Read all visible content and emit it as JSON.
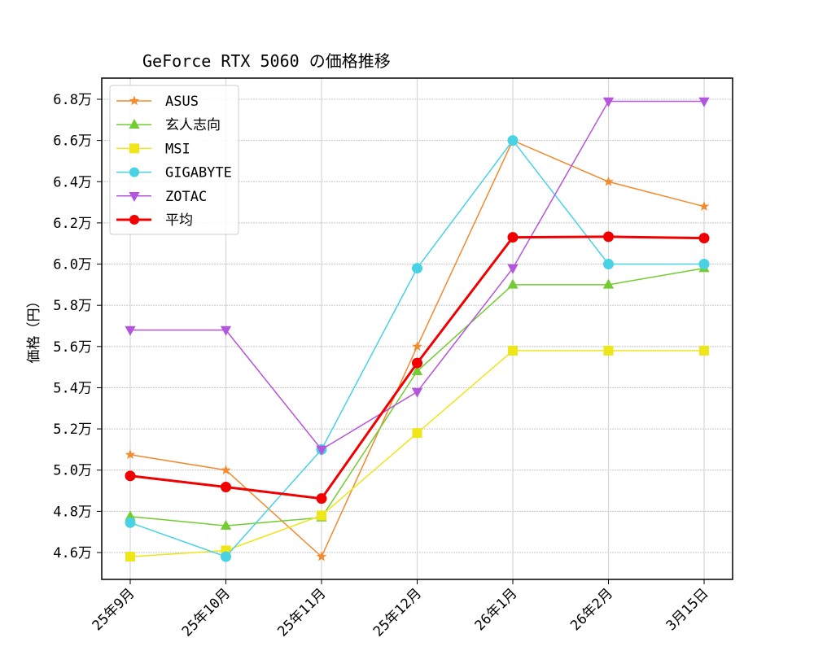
{
  "chart_data": {
    "type": "line",
    "title": "GeForce RTX 5060 の価格推移",
    "xlabel": "",
    "ylabel": "価格（円）",
    "categories": [
      "25年9月",
      "25年10月",
      "25年11月",
      "25年12月",
      "26年1月",
      "26年2月",
      "3月15日"
    ],
    "yticks": [
      46000,
      48000,
      50000,
      52000,
      54000,
      56000,
      58000,
      60000,
      62000,
      64000,
      66000,
      68000
    ],
    "ytick_labels": [
      "4.6万",
      "4.8万",
      "5.0万",
      "5.2万",
      "5.4万",
      "5.6万",
      "5.8万",
      "6.0万",
      "6.2万",
      "6.4万",
      "6.6万",
      "6.8万"
    ],
    "ylim": [
      45300,
      69000
    ],
    "grid": true,
    "legend_position": "upper left",
    "series": [
      {
        "name": "ASUS",
        "color": "#f28a2e",
        "marker": "star",
        "linewidth": 1.5,
        "values": [
          50750,
          50000,
          45800,
          56000,
          66000,
          64000,
          62800
        ]
      },
      {
        "name": "玄人志向",
        "color": "#72cc32",
        "marker": "triangle-up",
        "linewidth": 1.5,
        "values": [
          47750,
          47300,
          47700,
          54800,
          59000,
          59000,
          59800
        ]
      },
      {
        "name": "MSI",
        "color": "#eee619",
        "marker": "square",
        "linewidth": 1.5,
        "values": [
          45800,
          46100,
          47800,
          51800,
          55800,
          55800,
          55800
        ]
      },
      {
        "name": "GIGABYTE",
        "color": "#48d2e4",
        "marker": "circle",
        "linewidth": 1.5,
        "values": [
          47450,
          45800,
          51000,
          59800,
          66000,
          60000,
          60000
        ]
      },
      {
        "name": "ZOTAC",
        "color": "#b455dd",
        "marker": "triangle-down",
        "linewidth": 1.5,
        "values": [
          56800,
          56800,
          51000,
          53800,
          59800,
          67900,
          67900
        ]
      },
      {
        "name": "平均",
        "color": "#f00000",
        "marker": "circle",
        "linewidth": 3,
        "values": [
          49720,
          49180,
          48620,
          55200,
          61300,
          61330,
          61260
        ]
      }
    ]
  }
}
